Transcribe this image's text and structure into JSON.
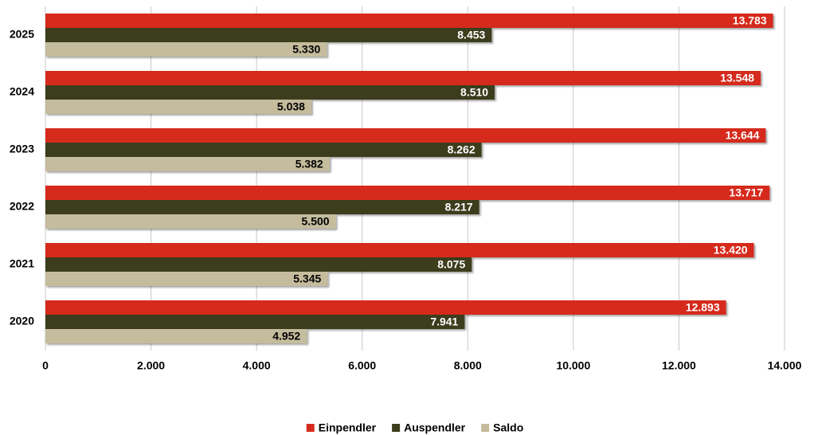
{
  "chart_data": {
    "type": "barh",
    "categories": [
      "2025",
      "2024",
      "2023",
      "2022",
      "2021",
      "2020"
    ],
    "series": [
      {
        "name": "Einpendler",
        "color": "#d52b1e",
        "values": [
          13783,
          13548,
          13644,
          13717,
          13420,
          12893
        ],
        "value_labels": [
          "13.783",
          "13.548",
          "13.644",
          "13.717",
          "13.420",
          "12.893"
        ]
      },
      {
        "name": "Auspendler",
        "color": "#3b3c1a",
        "values": [
          8453,
          8510,
          8262,
          8217,
          8075,
          7941
        ],
        "value_labels": [
          "8.453",
          "8.510",
          "8.262",
          "8.217",
          "8.075",
          "7.941"
        ]
      },
      {
        "name": "Saldo",
        "color": "#c4bc9c",
        "values": [
          5330,
          5038,
          5382,
          5500,
          5345,
          4952
        ],
        "value_labels": [
          "5.330",
          "5.038",
          "5.382",
          "5.500",
          "5.345",
          "4.952"
        ]
      }
    ],
    "xlim": [
      0,
      14000
    ],
    "xticks": [
      0,
      {
        "value": 2000,
        "label": "2.000"
      },
      {
        "value": 4000,
        "label": "4.000"
      },
      {
        "value": 6000,
        "label": "6.000"
      },
      {
        "value": 8000,
        "label": "8.000"
      },
      {
        "value": 10000,
        "label": "10.000"
      },
      {
        "value": 12000,
        "label": "12.000"
      },
      {
        "value": 14000,
        "label": "14.000"
      }
    ],
    "grid": true,
    "legend": "bottom"
  }
}
